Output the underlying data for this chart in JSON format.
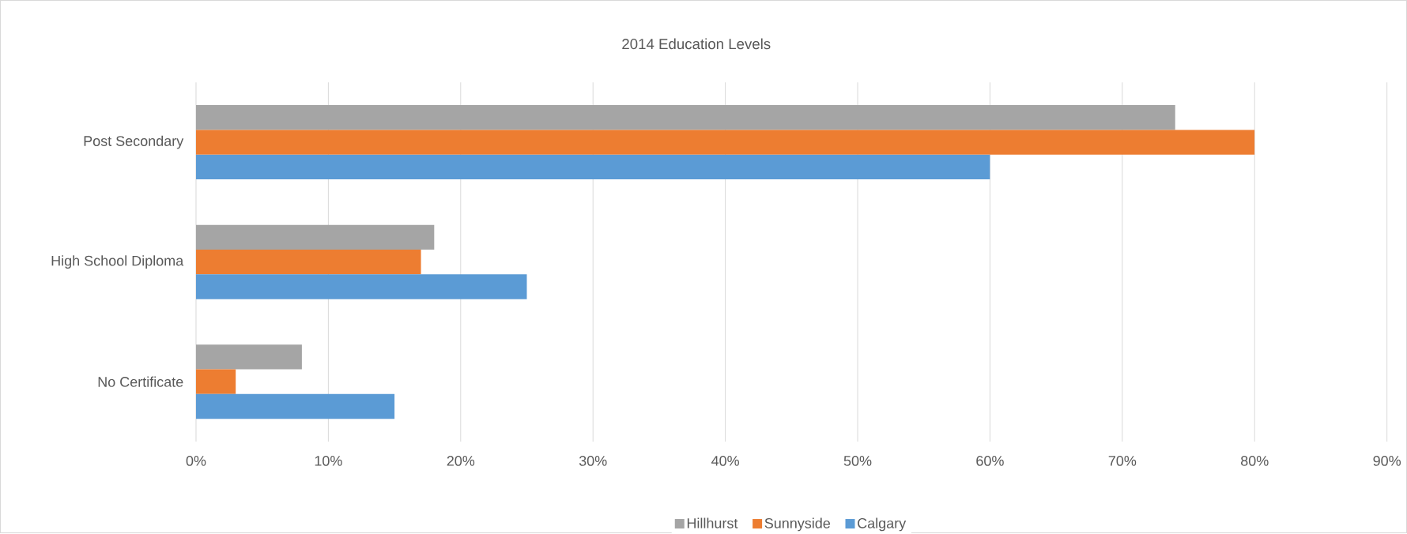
{
  "chart_data": {
    "type": "bar",
    "orientation": "horizontal",
    "title": "2014 Education Levels",
    "categories": [
      "Post Secondary",
      "High School Diploma",
      "No Certificate"
    ],
    "series": [
      {
        "name": "Hillhurst",
        "color": "#a5a5a5",
        "values": [
          74,
          18,
          8
        ]
      },
      {
        "name": "Sunnyside",
        "color": "#ed7d31",
        "values": [
          80,
          17,
          3
        ]
      },
      {
        "name": "Calgary",
        "color": "#5b9bd5",
        "values": [
          60,
          25,
          15
        ]
      }
    ],
    "xlim": [
      0,
      90
    ],
    "xticks": [
      {
        "value": 0,
        "label": "0%"
      },
      {
        "value": 10,
        "label": "10%"
      },
      {
        "value": 20,
        "label": "20%"
      },
      {
        "value": 30,
        "label": "30%"
      },
      {
        "value": 40,
        "label": "40%"
      },
      {
        "value": 50,
        "label": "50%"
      },
      {
        "value": 60,
        "label": "60%"
      },
      {
        "value": 70,
        "label": "70%"
      },
      {
        "value": 80,
        "label": "80%"
      },
      {
        "value": 90,
        "label": "90%"
      }
    ],
    "grid": "x",
    "legend": "bottom"
  }
}
